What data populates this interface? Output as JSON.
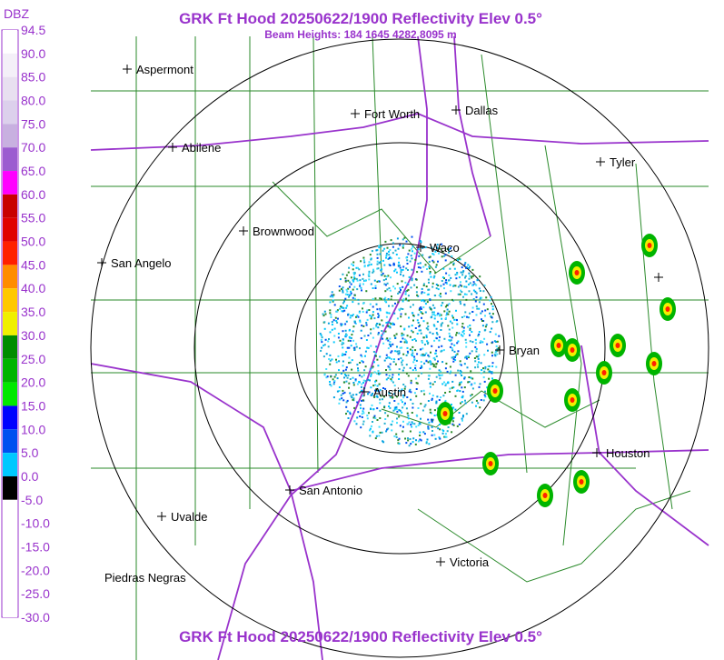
{
  "header": {
    "title": "GRK Ft Hood 20250622/1900 Reflectivity Elev 0.5°",
    "subtitle": "Beam Heights: 184 1645 4282 8095 m"
  },
  "legend": {
    "unit": "DBZ",
    "labels": [
      "94.5",
      "90.0",
      "85.0",
      "80.0",
      "75.0",
      "70.0",
      "65.0",
      "60.0",
      "55.0",
      "50.0",
      "45.0",
      "40.0",
      "35.0",
      "30.0",
      "25.0",
      "20.0",
      "15.0",
      "10.0",
      "5.0",
      "0.0",
      "-5.0",
      "-10.0",
      "-15.0",
      "-20.0",
      "-25.0",
      "-30.0"
    ],
    "colors": [
      "#ffffff",
      "#f4f0f8",
      "#e8e0f0",
      "#dcd0ec",
      "#c8b0e0",
      "#9c5cd0",
      "#ff00ff",
      "#c80000",
      "#e00000",
      "#ff2000",
      "#ff8c00",
      "#ffc800",
      "#f0f000",
      "#008c00",
      "#00b400",
      "#00e800",
      "#0000ff",
      "#0050f0",
      "#00c8ff",
      "#000000",
      "#ffffff",
      "#ffffff",
      "#ffffff",
      "#ffffff",
      "#ffffff"
    ]
  },
  "cities": [
    {
      "name": "Aspermont"
    },
    {
      "name": "Fort Worth"
    },
    {
      "name": "Dallas"
    },
    {
      "name": "Abilene"
    },
    {
      "name": "Tyler"
    },
    {
      "name": "Brownwood"
    },
    {
      "name": "Waco"
    },
    {
      "name": "San Angelo"
    },
    {
      "name": "Bryan"
    },
    {
      "name": "Austin"
    },
    {
      "name": "Houston"
    },
    {
      "name": "San Antonio"
    },
    {
      "name": "Uvalde"
    },
    {
      "name": "Victoria"
    },
    {
      "name": "Piedras Negras"
    }
  ]
}
